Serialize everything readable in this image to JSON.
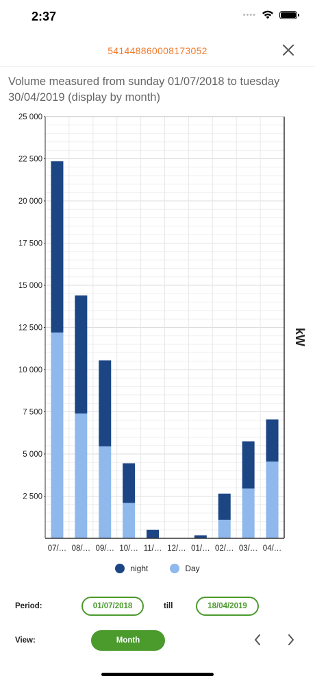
{
  "status": {
    "time": "2:37"
  },
  "header": {
    "title": "541448860008173052"
  },
  "subtitle": "Volume measured from sunday 01/07/2018 to tuesday 30/04/2019 (display by month)",
  "chart_data": {
    "type": "bar",
    "stacked": true,
    "categories": [
      "07/…",
      "08/…",
      "09/…",
      "10/…",
      "11/…",
      "12/…",
      "01/…",
      "02/…",
      "03/…",
      "04/…"
    ],
    "series": [
      {
        "name": "Day",
        "color": "#8fb8ec",
        "values": [
          12200,
          7400,
          5450,
          2100,
          0,
          0,
          0,
          1100,
          2950,
          4550
        ]
      },
      {
        "name": "night",
        "color": "#1c4584",
        "values": [
          10150,
          7000,
          5100,
          2350,
          500,
          0,
          180,
          1550,
          2800,
          2500
        ]
      }
    ],
    "ylim": [
      0,
      25000
    ],
    "yticks": [
      2500,
      5000,
      7500,
      10000,
      12500,
      15000,
      17500,
      20000,
      22500,
      25000
    ],
    "ytick_labels": [
      "2 500",
      "5 000",
      "7 500",
      "10 000",
      "12 500",
      "15 000",
      "17 500",
      "20 000",
      "22 500",
      "25 000"
    ],
    "ylabel": "kW",
    "grid": true,
    "legend": [
      "night",
      "Day"
    ],
    "legend_position": "bottom-center"
  },
  "legend": {
    "night": "night",
    "day": "Day"
  },
  "controls": {
    "period_label": "Period:",
    "start_date": "01/07/2018",
    "till_label": "till",
    "end_date": "18/04/2019",
    "view_label": "View:",
    "view_value": "Month"
  },
  "colors": {
    "accent": "#f07a2b",
    "green": "#4a9a2c",
    "night": "#1c4584",
    "day": "#8fb8ec"
  }
}
